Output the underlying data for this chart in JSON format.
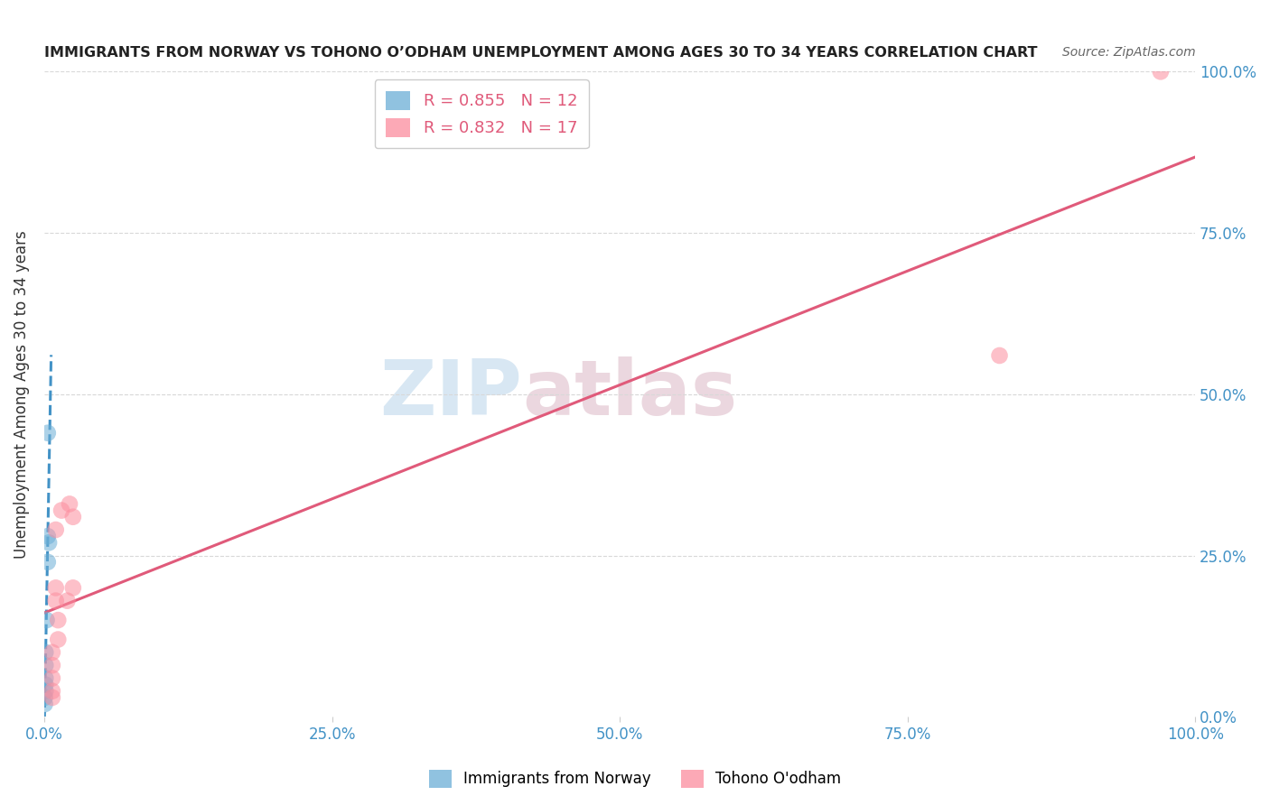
{
  "title": "IMMIGRANTS FROM NORWAY VS TOHONO O’ODHAM UNEMPLOYMENT AMONG AGES 30 TO 34 YEARS CORRELATION CHART",
  "source": "Source: ZipAtlas.com",
  "ylabel": "Unemployment Among Ages 30 to 34 years",
  "xlabel_ticks": [
    "0.0%",
    "25.0%",
    "50.0%",
    "75.0%",
    "100.0%"
  ],
  "ylabel_ticks_right": [
    "0.0%",
    "25.0%",
    "50.0%",
    "75.0%",
    "100.0%"
  ],
  "xlim": [
    0,
    1.0
  ],
  "ylim": [
    0,
    1.0
  ],
  "norway_points": [
    [
      0.003,
      0.44
    ],
    [
      0.003,
      0.28
    ],
    [
      0.004,
      0.27
    ],
    [
      0.003,
      0.24
    ],
    [
      0.002,
      0.15
    ],
    [
      0.001,
      0.1
    ],
    [
      0.001,
      0.08
    ],
    [
      0.001,
      0.06
    ],
    [
      0.001,
      0.05
    ],
    [
      0.001,
      0.04
    ],
    [
      0.0005,
      0.03
    ],
    [
      0.0005,
      0.02
    ]
  ],
  "tohono_points": [
    [
      0.97,
      1.0
    ],
    [
      0.83,
      0.56
    ],
    [
      0.022,
      0.33
    ],
    [
      0.025,
      0.31
    ],
    [
      0.015,
      0.32
    ],
    [
      0.01,
      0.29
    ],
    [
      0.025,
      0.2
    ],
    [
      0.01,
      0.2
    ],
    [
      0.01,
      0.18
    ],
    [
      0.012,
      0.15
    ],
    [
      0.012,
      0.12
    ],
    [
      0.007,
      0.1
    ],
    [
      0.02,
      0.18
    ],
    [
      0.007,
      0.08
    ],
    [
      0.007,
      0.06
    ],
    [
      0.007,
      0.04
    ],
    [
      0.007,
      0.03
    ]
  ],
  "norway_R": 0.855,
  "norway_N": 12,
  "tohono_R": 0.832,
  "tohono_N": 17,
  "norway_color": "#6baed6",
  "tohono_color": "#fc8d9e",
  "norway_line_color": "#4292c6",
  "tohono_line_color": "#e05a7a",
  "legend_norway": "Immigrants from Norway",
  "legend_tohono": "Tohono O'odham",
  "watermark_zip": "ZIP",
  "watermark_atlas": "atlas",
  "background_color": "#ffffff",
  "grid_color": "#d8d8d8"
}
